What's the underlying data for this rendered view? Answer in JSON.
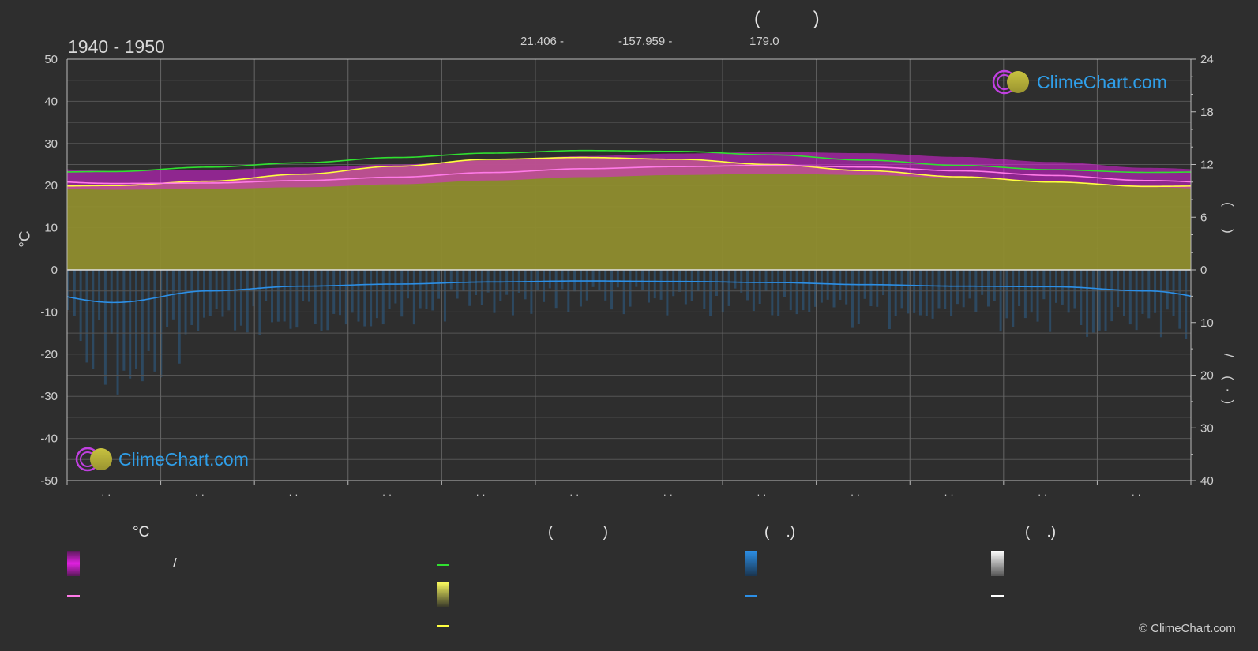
{
  "header": {
    "title": "(          )",
    "period": "1940 - 1950",
    "coords": {
      "lat": "21.406 -",
      "lon": "-157.959 -",
      "elev": "179.0"
    }
  },
  "logo": {
    "text": "ClimeChart.com"
  },
  "copyright": "© ClimeChart.com",
  "axes": {
    "left_unit": "°C",
    "right_top_label": "(      )",
    "right_bottom_label": "/     (  ·  )",
    "month_tick_label": "· ·"
  },
  "legend": {
    "col1": {
      "title": "°C",
      "range_label": "/"
    },
    "col2": {
      "title": "(            )"
    },
    "col3": {
      "title": "(    .)"
    },
    "col4": {
      "title": "(    .)"
    }
  },
  "colors": {
    "background": "#2e2e2e",
    "max_temp_band": "#e020e0",
    "mean_temp": "#ff7ae8",
    "daylight": "#30e030",
    "sunshine": "#ffff40",
    "sunshine_fill": "#8f8d2e",
    "precipitation": "#2c8fe6",
    "snow": "#ffffff",
    "logo_ring": "#c040e0",
    "logo_sun": "#d8d020",
    "logo_text": "#2f9ee8"
  },
  "chart_data": {
    "type": "line",
    "x": [
      1,
      2,
      3,
      4,
      5,
      6,
      7,
      8,
      9,
      10,
      11,
      12
    ],
    "ylim_left": [
      -50,
      50
    ],
    "yticks_left": [
      50,
      40,
      30,
      20,
      10,
      0,
      -10,
      -20,
      -30,
      -40,
      -50
    ],
    "right_top_ticks": [
      24,
      18,
      12,
      6,
      0
    ],
    "right_bottom_ticks": [
      10,
      20,
      30,
      40
    ],
    "grid": true,
    "series": [
      {
        "key": "daylight",
        "unit": "h",
        "values": [
          11.2,
          11.7,
          12.2,
          12.8,
          13.3,
          13.6,
          13.5,
          13.1,
          12.5,
          11.9,
          11.4,
          11.1
        ]
      },
      {
        "key": "sunshine",
        "unit": "h",
        "values": [
          9.6,
          10.1,
          10.9,
          11.8,
          12.6,
          12.8,
          12.6,
          12.0,
          11.3,
          10.6,
          10.0,
          9.5
        ]
      },
      {
        "key": "mean_temp",
        "unit": "°C",
        "values": [
          20.5,
          20.6,
          21.2,
          22.0,
          23.1,
          24.0,
          24.5,
          24.8,
          24.4,
          23.5,
          22.4,
          21.2
        ]
      },
      {
        "key": "temp_max",
        "unit": "°C",
        "values": [
          23.5,
          23.7,
          24.3,
          25.0,
          26.0,
          27.0,
          27.6,
          28.0,
          27.7,
          26.8,
          25.6,
          24.2
        ]
      },
      {
        "key": "temp_min",
        "unit": "°C",
        "values": [
          19.0,
          19.2,
          19.6,
          20.3,
          21.2,
          22.0,
          22.5,
          22.8,
          22.5,
          21.8,
          20.8,
          19.6
        ]
      },
      {
        "key": "precipitation",
        "unit": "mm/day",
        "values": [
          6.2,
          4.0,
          3.1,
          2.7,
          2.3,
          2.1,
          2.2,
          2.4,
          2.8,
          3.1,
          3.2,
          4.0
        ]
      }
    ]
  }
}
